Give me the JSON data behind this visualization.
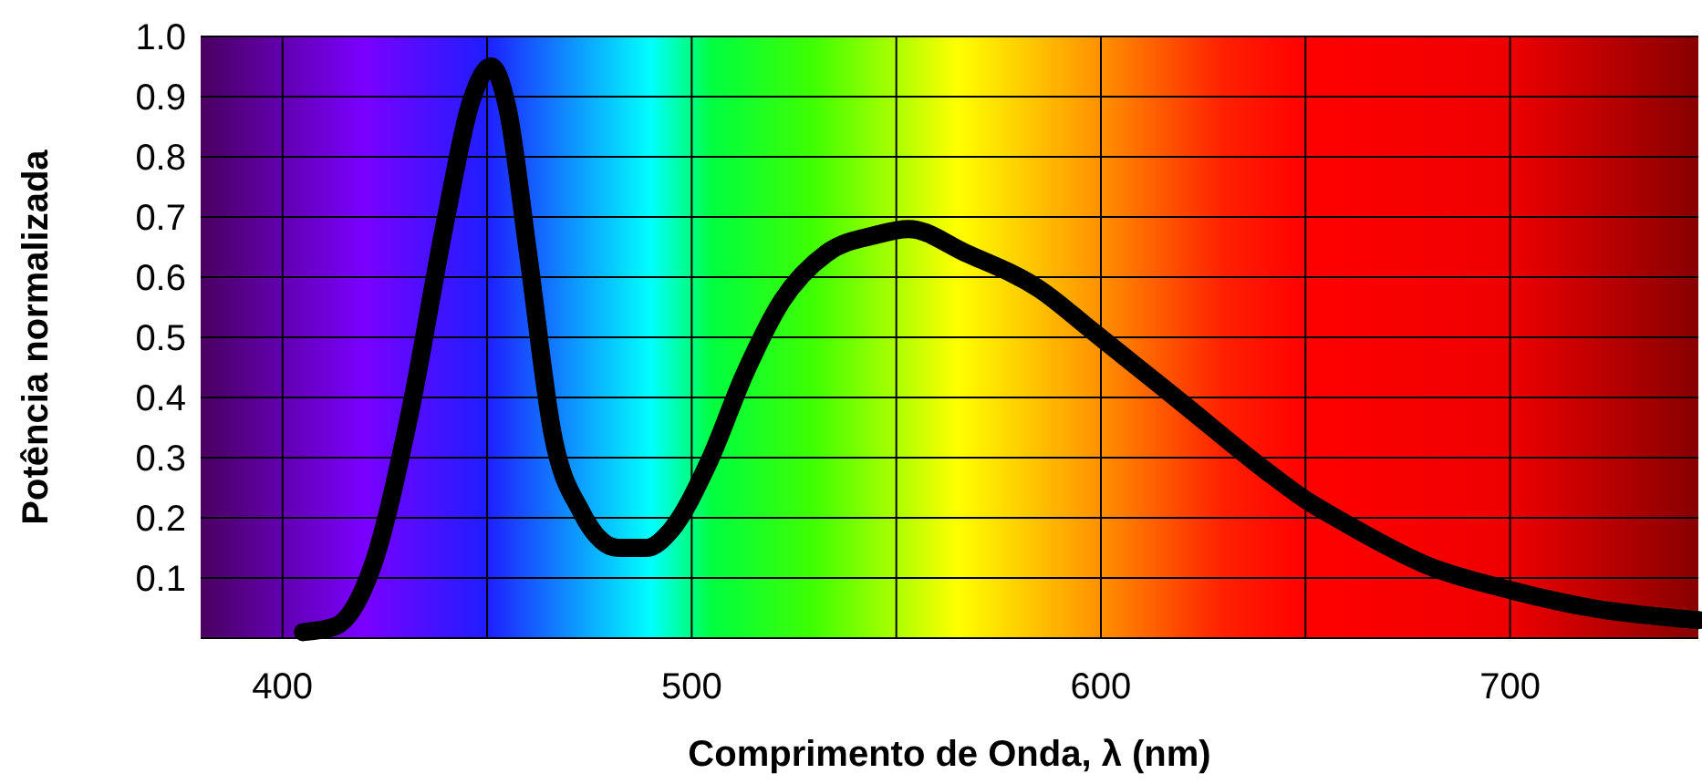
{
  "chart_data": {
    "type": "line",
    "xlabel": "Comprimento de Onda, λ (nm)",
    "ylabel": "Potência normalizada",
    "xlim": [
      380,
      746
    ],
    "ylim": [
      0,
      1
    ],
    "xticks": [
      400,
      {
        "value": 450,
        "label": null
      },
      500,
      {
        "value": 550,
        "label": null
      },
      600,
      {
        "value": 650,
        "label": null
      },
      700
    ],
    "yticks": [
      {
        "value": 0,
        "label": null
      },
      0.1,
      0.2,
      0.3,
      0.4,
      0.5,
      0.6,
      0.7,
      0.8,
      0.9,
      {
        "value": 1,
        "label": "1.0"
      }
    ],
    "grid": true,
    "line_style": "solid",
    "marker": "none",
    "series": [
      {
        "color": "#000000",
        "x": [
          405,
          413,
          422,
          431,
          440,
          446,
          451,
          455,
          460,
          466,
          473,
          482,
          489,
          495,
          504,
          513,
          522,
          533,
          545,
          553,
          567,
          585,
          598,
          620,
          640,
          650,
          660,
          680,
          700,
          720,
          746
        ],
        "values": [
          0.01,
          0.02,
          0.12,
          0.37,
          0.7,
          0.89,
          0.95,
          0.88,
          0.64,
          0.34,
          0.21,
          0.15,
          0.15,
          0.18,
          0.29,
          0.44,
          0.56,
          0.64,
          0.67,
          0.68,
          0.64,
          0.58,
          0.51,
          0.39,
          0.28,
          0.23,
          0.19,
          0.12,
          0.08,
          0.05,
          0.03
        ]
      }
    ]
  }
}
